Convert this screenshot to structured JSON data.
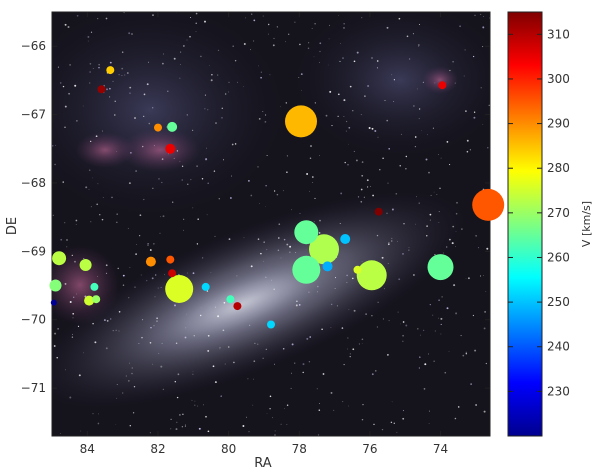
{
  "chart_data": {
    "type": "scatter",
    "title": "",
    "xlabel": "RA",
    "ylabel": "DE",
    "xlim": [
      85,
      72.6
    ],
    "ylim": [
      -71.7,
      -65.5
    ],
    "x_ticks": [
      84,
      82,
      80,
      78,
      76,
      74
    ],
    "x_tick_labels": [
      "84",
      "82",
      "80",
      "78",
      "76",
      "74"
    ],
    "y_ticks": [
      -66,
      -67,
      -68,
      -69,
      -70,
      -71
    ],
    "y_tick_labels": [
      "−66",
      "−67",
      "−68",
      "−69",
      "−70",
      "−71"
    ],
    "background": "Large Magellanic Cloud sky image",
    "grid": false,
    "colorbar": {
      "label": "V [km/s]",
      "colormap": "jet",
      "range": [
        220,
        315
      ],
      "ticks": [
        230,
        240,
        250,
        260,
        270,
        280,
        290,
        300,
        310
      ],
      "tick_labels": [
        "230",
        "240",
        "250",
        "260",
        "270",
        "280",
        "290",
        "300",
        "310"
      ]
    },
    "size_encoding": "marker size varies per point (relative units)",
    "points": [
      {
        "x": 83.35,
        "y": -66.35,
        "v": 284,
        "size": 4
      },
      {
        "x": 83.6,
        "y": -66.63,
        "v": 313,
        "size": 4
      },
      {
        "x": 73.95,
        "y": -66.57,
        "v": 305,
        "size": 4
      },
      {
        "x": 82.0,
        "y": -67.19,
        "v": 290,
        "size": 4
      },
      {
        "x": 81.6,
        "y": -67.18,
        "v": 265,
        "size": 5
      },
      {
        "x": 81.65,
        "y": -67.5,
        "v": 305,
        "size": 5
      },
      {
        "x": 77.95,
        "y": -67.1,
        "v": 286,
        "size": 16
      },
      {
        "x": 75.75,
        "y": -68.42,
        "v": 315,
        "size": 4
      },
      {
        "x": 72.65,
        "y": -68.32,
        "v": 295,
        "size": 16
      },
      {
        "x": 77.8,
        "y": -68.72,
        "v": 265,
        "size": 12
      },
      {
        "x": 77.3,
        "y": -68.97,
        "v": 272,
        "size": 15
      },
      {
        "x": 76.7,
        "y": -68.82,
        "v": 250,
        "size": 5
      },
      {
        "x": 84.8,
        "y": -69.1,
        "v": 273,
        "size": 7
      },
      {
        "x": 84.05,
        "y": -69.2,
        "v": 273,
        "size": 6
      },
      {
        "x": 82.2,
        "y": -69.15,
        "v": 290,
        "size": 5
      },
      {
        "x": 81.65,
        "y": -69.12,
        "v": 295,
        "size": 4
      },
      {
        "x": 81.6,
        "y": -69.32,
        "v": 308,
        "size": 4
      },
      {
        "x": 77.8,
        "y": -69.27,
        "v": 265,
        "size": 14
      },
      {
        "x": 77.2,
        "y": -69.22,
        "v": 248,
        "size": 5
      },
      {
        "x": 76.35,
        "y": -69.27,
        "v": 276,
        "size": 4
      },
      {
        "x": 75.95,
        "y": -69.35,
        "v": 273,
        "size": 15
      },
      {
        "x": 74.0,
        "y": -69.23,
        "v": 265,
        "size": 13
      },
      {
        "x": 84.9,
        "y": -69.5,
        "v": 268,
        "size": 6
      },
      {
        "x": 83.8,
        "y": -69.52,
        "v": 262,
        "size": 4
      },
      {
        "x": 81.4,
        "y": -69.55,
        "v": 276,
        "size": 14
      },
      {
        "x": 80.65,
        "y": -69.52,
        "v": 252,
        "size": 4
      },
      {
        "x": 83.95,
        "y": -69.72,
        "v": 275,
        "size": 5
      },
      {
        "x": 83.75,
        "y": -69.7,
        "v": 270,
        "size": 4
      },
      {
        "x": 79.95,
        "y": -69.7,
        "v": 262,
        "size": 4
      },
      {
        "x": 79.75,
        "y": -69.8,
        "v": 310,
        "size": 4
      },
      {
        "x": 78.8,
        "y": -70.07,
        "v": 252,
        "size": 4
      },
      {
        "x": 84.95,
        "y": -69.75,
        "v": 222,
        "size": 3
      }
    ]
  }
}
